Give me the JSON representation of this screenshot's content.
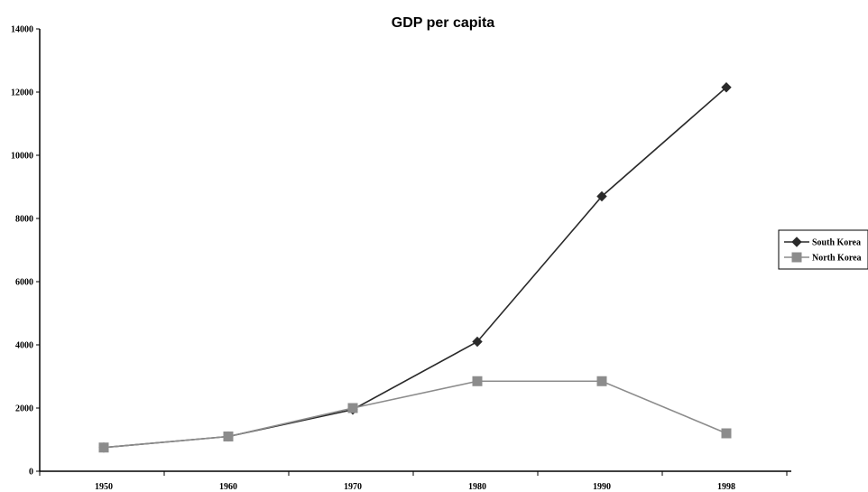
{
  "chart_data": {
    "type": "line",
    "title": "GDP per capita",
    "xlabel": "",
    "ylabel": "",
    "categories": [
      "1950",
      "1960",
      "1970",
      "1980",
      "1990",
      "1998"
    ],
    "ylim": [
      0,
      14000
    ],
    "yticks": [
      "0",
      "2000",
      "4000",
      "6000",
      "8000",
      "10000",
      "12000",
      "14000"
    ],
    "grid": false,
    "legend_position": "right",
    "series": [
      {
        "name": "South Korea",
        "values": [
          750,
          1100,
          1950,
          4100,
          8700,
          12150
        ],
        "color": "#2a2a2a",
        "marker": "diamond"
      },
      {
        "name": "North Korea",
        "values": [
          750,
          1100,
          2000,
          2850,
          2850,
          1200
        ],
        "color": "#8c8c8c",
        "marker": "square"
      }
    ]
  }
}
